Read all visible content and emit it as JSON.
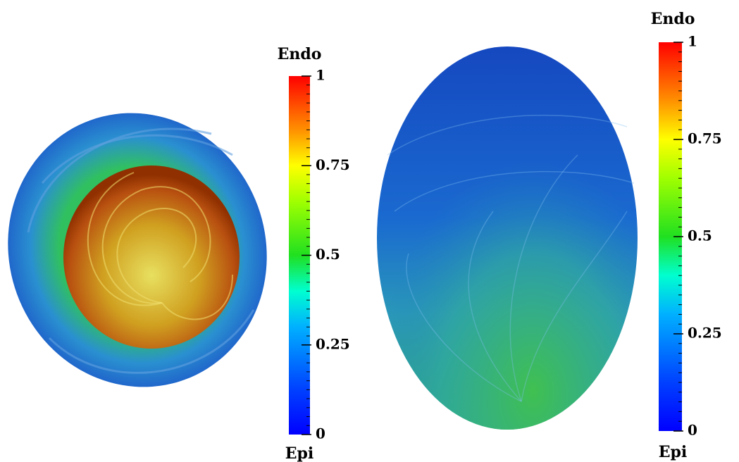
{
  "panels": [
    {
      "colorbar": {
        "top_label": "Endo",
        "bottom_label": "Epi",
        "ticks": [
          0,
          0.25,
          0.5,
          0.75,
          1
        ]
      }
    },
    {
      "colorbar": {
        "top_label": "Endo",
        "bottom_label": "Epi",
        "ticks": [
          0,
          0.25,
          0.5,
          0.75,
          1
        ]
      }
    }
  ]
}
